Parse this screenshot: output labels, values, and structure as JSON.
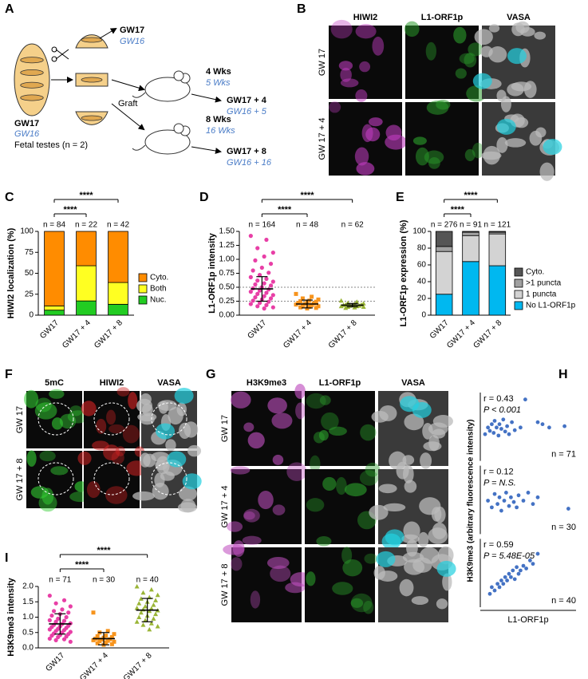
{
  "panel_labels": [
    "A",
    "B",
    "C",
    "D",
    "E",
    "F",
    "G",
    "H",
    "I"
  ],
  "panel_a": {
    "source": "GW17",
    "source_alt": "GW16",
    "source_note": "Fetal testes (n = 2)",
    "graft": "Graft",
    "direct": "GW17",
    "direct_alt": "GW16",
    "time1": "4 Wks",
    "time1_alt": "5 Wks",
    "time2": "8 Wks",
    "time2_alt": "16 Wks",
    "out1": "GW17 + 4",
    "out1_alt": "GW16 + 5",
    "out2": "GW17 + 8",
    "out2_alt": "GW16 + 16"
  },
  "panel_b": {
    "columns": [
      "HIWI2",
      "L1-ORF1p",
      "VASA"
    ],
    "rows": [
      "GW 17",
      "GW 17 + 4"
    ]
  },
  "panel_f": {
    "columns": [
      "5mC",
      "HIWI2",
      "VASA"
    ],
    "rows": [
      "GW 17",
      "GW 17 + 8"
    ]
  },
  "panel_g": {
    "columns": [
      "H3K9me3",
      "L1-ORF1p",
      "VASA"
    ],
    "rows": [
      "GW 17",
      "GW 17 + 4",
      "GW 17 + 8"
    ]
  },
  "chart_data": [
    {
      "type": "stacked_bar",
      "ylabel": "HIWI2 localization (%)",
      "categories": [
        "GW17",
        "GW17 + 4",
        "GW17 + 8"
      ],
      "series": [
        {
          "name": "Nuc.",
          "color": "#22cc22",
          "values": [
            6,
            17,
            13
          ]
        },
        {
          "name": "Both",
          "color": "#ffff22",
          "values": [
            5,
            42,
            26
          ]
        },
        {
          "name": "Cyto.",
          "color": "#ff8c00",
          "values": [
            89,
            41,
            61
          ]
        }
      ],
      "ylim": [
        0,
        100
      ],
      "yticks": [
        0,
        25,
        50,
        75,
        100
      ],
      "n_labels": [
        "n = 84",
        "n = 22",
        "n = 42"
      ],
      "significance": [
        "****",
        "****"
      ]
    },
    {
      "type": "strip",
      "ylabel": "L1-ORF1p intensity",
      "categories": [
        "GW17",
        "GW17 + 4",
        "GW17 + 8"
      ],
      "colors": [
        "#e83fa6",
        "#f7941d",
        "#9ab536"
      ],
      "markers": [
        "circle",
        "square",
        "triangle"
      ],
      "points": [
        [
          1.42,
          1.35,
          1.2,
          1.12,
          1.05,
          0.98,
          0.92,
          0.85,
          0.8,
          0.76,
          0.72,
          0.68,
          0.65,
          0.62,
          0.6,
          0.57,
          0.55,
          0.53,
          0.5,
          0.48,
          0.46,
          0.44,
          0.42,
          0.4,
          0.38,
          0.36,
          0.34,
          0.32,
          0.3,
          0.28,
          0.26,
          0.24,
          0.22,
          0.2,
          0.18,
          0.16,
          0.14,
          0.12
        ],
        [
          0.38,
          0.33,
          0.3,
          0.28,
          0.26,
          0.25,
          0.24,
          0.23,
          0.22,
          0.21,
          0.2,
          0.19,
          0.18,
          0.17,
          0.16,
          0.15,
          0.14,
          0.13,
          0.12
        ],
        [
          0.26,
          0.24,
          0.22,
          0.21,
          0.2,
          0.19,
          0.19,
          0.18,
          0.18,
          0.17,
          0.17,
          0.16,
          0.16,
          0.15,
          0.15,
          0.14,
          0.13
        ]
      ],
      "mean": [
        0.47,
        0.2,
        0.18
      ],
      "sd": [
        0.22,
        0.07,
        0.03
      ],
      "reference_lines": [
        0.5,
        0.25
      ],
      "ylim": [
        0,
        1.5
      ],
      "yticks": [
        {
          "value": 0,
          "label": "0.00"
        },
        {
          "value": 0.25,
          "label": "0.25"
        },
        {
          "value": 0.5,
          "label": "0.50"
        },
        {
          "value": 0.75,
          "label": "0.75"
        },
        {
          "value": 1,
          "label": "1.00"
        },
        {
          "value": 1.25,
          "label": "1.25"
        },
        {
          "value": 1.5,
          "label": "1.50"
        }
      ],
      "n_labels": [
        "n = 164",
        "n = 48",
        "n = 62"
      ],
      "significance": [
        "****",
        "****"
      ]
    },
    {
      "type": "stacked_bar",
      "ylabel": "L1-ORF1p expression (%)",
      "categories": [
        "GW17",
        "GW17 + 4",
        "GW17 + 8"
      ],
      "series": [
        {
          "name": "No L1-ORF1p",
          "color": "#00b8f0",
          "values": [
            25,
            64,
            59
          ]
        },
        {
          "name": "1 puncta",
          "color": "#d3d3d3",
          "values": [
            51,
            31,
            38
          ]
        },
        {
          "name": ">1 puncta",
          "color": "#a0a0a0",
          "values": [
            6,
            4,
            2
          ]
        },
        {
          "name": "Cyto.",
          "color": "#555555",
          "values": [
            18,
            1,
            1
          ]
        }
      ],
      "ylim": [
        0,
        100
      ],
      "yticks": [
        0,
        20,
        40,
        60,
        80,
        100
      ],
      "n_labels": [
        "n = 276",
        "n = 91",
        "n = 121"
      ],
      "significance": [
        "****",
        "****"
      ]
    },
    {
      "type": "strip",
      "ylabel": "H3K9me3 intensity",
      "categories": [
        "GW17",
        "GW17 + 4",
        "GW17 + 8"
      ],
      "colors": [
        "#e83fa6",
        "#f7941d",
        "#9ab536"
      ],
      "markers": [
        "circle",
        "square",
        "triangle"
      ],
      "points": [
        [
          1.7,
          1.55,
          1.45,
          1.35,
          1.25,
          1.2,
          1.15,
          1.1,
          1.05,
          1.0,
          0.95,
          0.9,
          0.88,
          0.85,
          0.8,
          0.78,
          0.75,
          0.72,
          0.7,
          0.68,
          0.65,
          0.62,
          0.6,
          0.58,
          0.55,
          0.52,
          0.5,
          0.47,
          0.45,
          0.42,
          0.4,
          0.37,
          0.35,
          0.3,
          0.28,
          0.25,
          0.2
        ],
        [
          1.15,
          0.55,
          0.5,
          0.45,
          0.4,
          0.38,
          0.35,
          0.33,
          0.3,
          0.28,
          0.27,
          0.25,
          0.23,
          0.22,
          0.2,
          0.18,
          0.15,
          0.12,
          0.1
        ],
        [
          2.0,
          1.9,
          1.8,
          1.72,
          1.65,
          1.6,
          1.55,
          1.5,
          1.45,
          1.4,
          1.35,
          1.3,
          1.28,
          1.25,
          1.22,
          1.2,
          1.15,
          1.1,
          1.05,
          1.0,
          0.95,
          0.9,
          0.85,
          0.8,
          0.75,
          0.7,
          0.6
        ]
      ],
      "mean": [
        0.78,
        0.3,
        1.23
      ],
      "sd": [
        0.33,
        0.2,
        0.38
      ],
      "ylim": [
        0,
        2
      ],
      "yticks": [
        {
          "value": 0,
          "label": "0.0"
        },
        {
          "value": 0.5,
          "label": "0.5"
        },
        {
          "value": 1,
          "label": "1.0"
        },
        {
          "value": 1.5,
          "label": "1.5"
        },
        {
          "value": 2,
          "label": "2.0"
        }
      ],
      "n_labels": [
        "n = 71",
        "n = 30",
        "n = 40"
      ],
      "significance": [
        "****",
        "****"
      ]
    },
    {
      "type": "scatter",
      "ylabel": "H3K9me3 (arbitrary fluorescence intensity)",
      "xlabel": "L1-ORF1p",
      "color": "#4472c4",
      "xlim": [
        0,
        1
      ],
      "ylim": [
        0,
        1
      ],
      "panels": [
        {
          "r_label": "r = 0.43",
          "p_label": "P < 0.001",
          "n_label": "n = 71",
          "x": [
            0.05,
            0.08,
            0.1,
            0.12,
            0.14,
            0.15,
            0.17,
            0.19,
            0.2,
            0.22,
            0.24,
            0.26,
            0.28,
            0.3,
            0.33,
            0.36,
            0.42,
            0.6,
            0.65,
            0.72,
            0.88,
            0.47
          ],
          "y": [
            0.4,
            0.5,
            0.45,
            0.55,
            0.42,
            0.6,
            0.5,
            0.38,
            0.55,
            0.48,
            0.62,
            0.44,
            0.52,
            0.4,
            0.58,
            0.46,
            0.5,
            0.58,
            0.55,
            0.5,
            0.52,
            0.92
          ]
        },
        {
          "r_label": "r = 0.12",
          "p_label": "P = N.S.",
          "n_label": "n = 30",
          "x": [
            0.08,
            0.12,
            0.15,
            0.18,
            0.2,
            0.22,
            0.25,
            0.27,
            0.3,
            0.32,
            0.35,
            0.38,
            0.4,
            0.45,
            0.5,
            0.55,
            0.6,
            0.92
          ],
          "y": [
            0.5,
            0.4,
            0.6,
            0.45,
            0.55,
            0.35,
            0.5,
            0.62,
            0.42,
            0.55,
            0.48,
            0.4,
            0.58,
            0.5,
            0.62,
            0.45,
            0.55,
            0.38
          ]
        },
        {
          "r_label": "r = 0.59",
          "p_label": "P = 5.48E-05",
          "n_label": "n = 40",
          "x": [
            0.1,
            0.12,
            0.15,
            0.18,
            0.2,
            0.22,
            0.24,
            0.26,
            0.28,
            0.3,
            0.32,
            0.34,
            0.36,
            0.38,
            0.4,
            0.42,
            0.45,
            0.48,
            0.52,
            0.55,
            0.6
          ],
          "y": [
            0.2,
            0.3,
            0.25,
            0.35,
            0.3,
            0.4,
            0.35,
            0.45,
            0.4,
            0.5,
            0.45,
            0.55,
            0.42,
            0.6,
            0.5,
            0.55,
            0.62,
            0.58,
            0.7,
            0.65,
            0.8
          ]
        }
      ]
    }
  ]
}
